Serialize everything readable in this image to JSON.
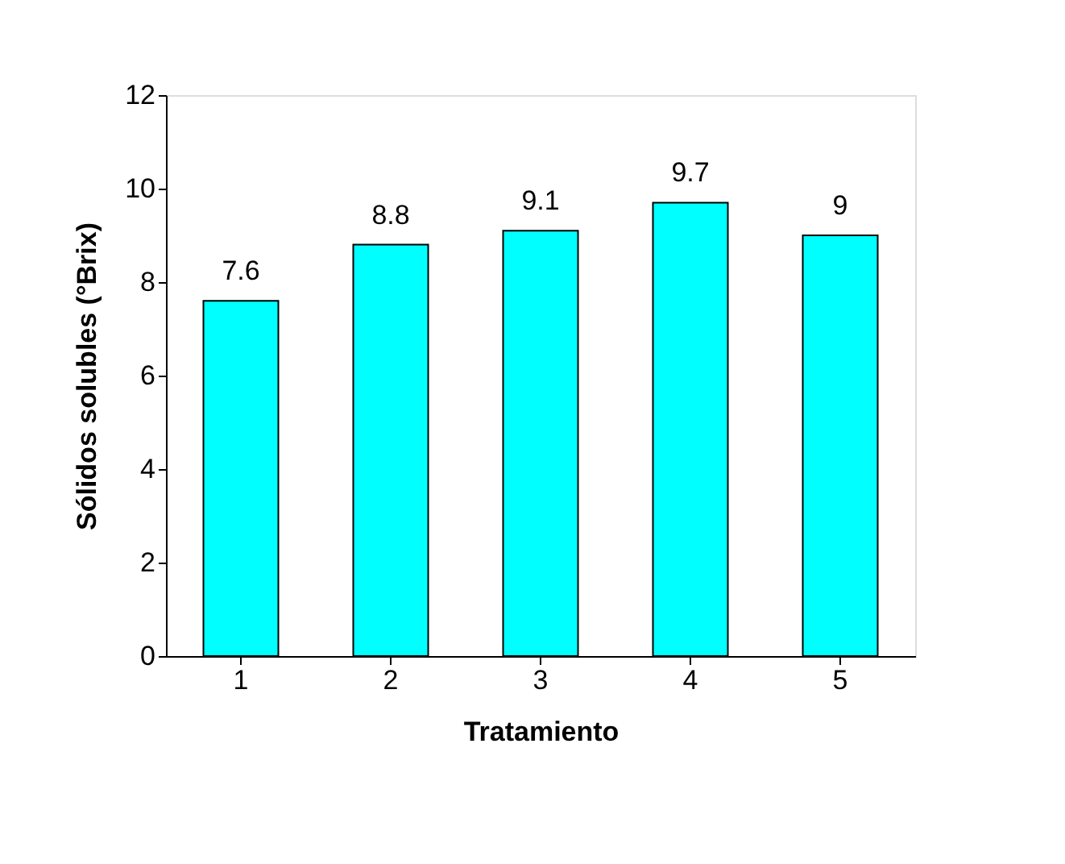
{
  "chart_data": {
    "type": "bar",
    "categories": [
      "1",
      "2",
      "3",
      "4",
      "5"
    ],
    "values": [
      7.6,
      8.8,
      9.1,
      9.7,
      9
    ],
    "color": "#00ffff",
    "xlabel": "Tratamiento",
    "ylabel": "Sólidos solubles (°Brix)",
    "ylim": [
      0,
      12
    ],
    "yticks": [
      0,
      2,
      4,
      6,
      8,
      10,
      12
    ],
    "grid": false,
    "data_labels": true
  }
}
